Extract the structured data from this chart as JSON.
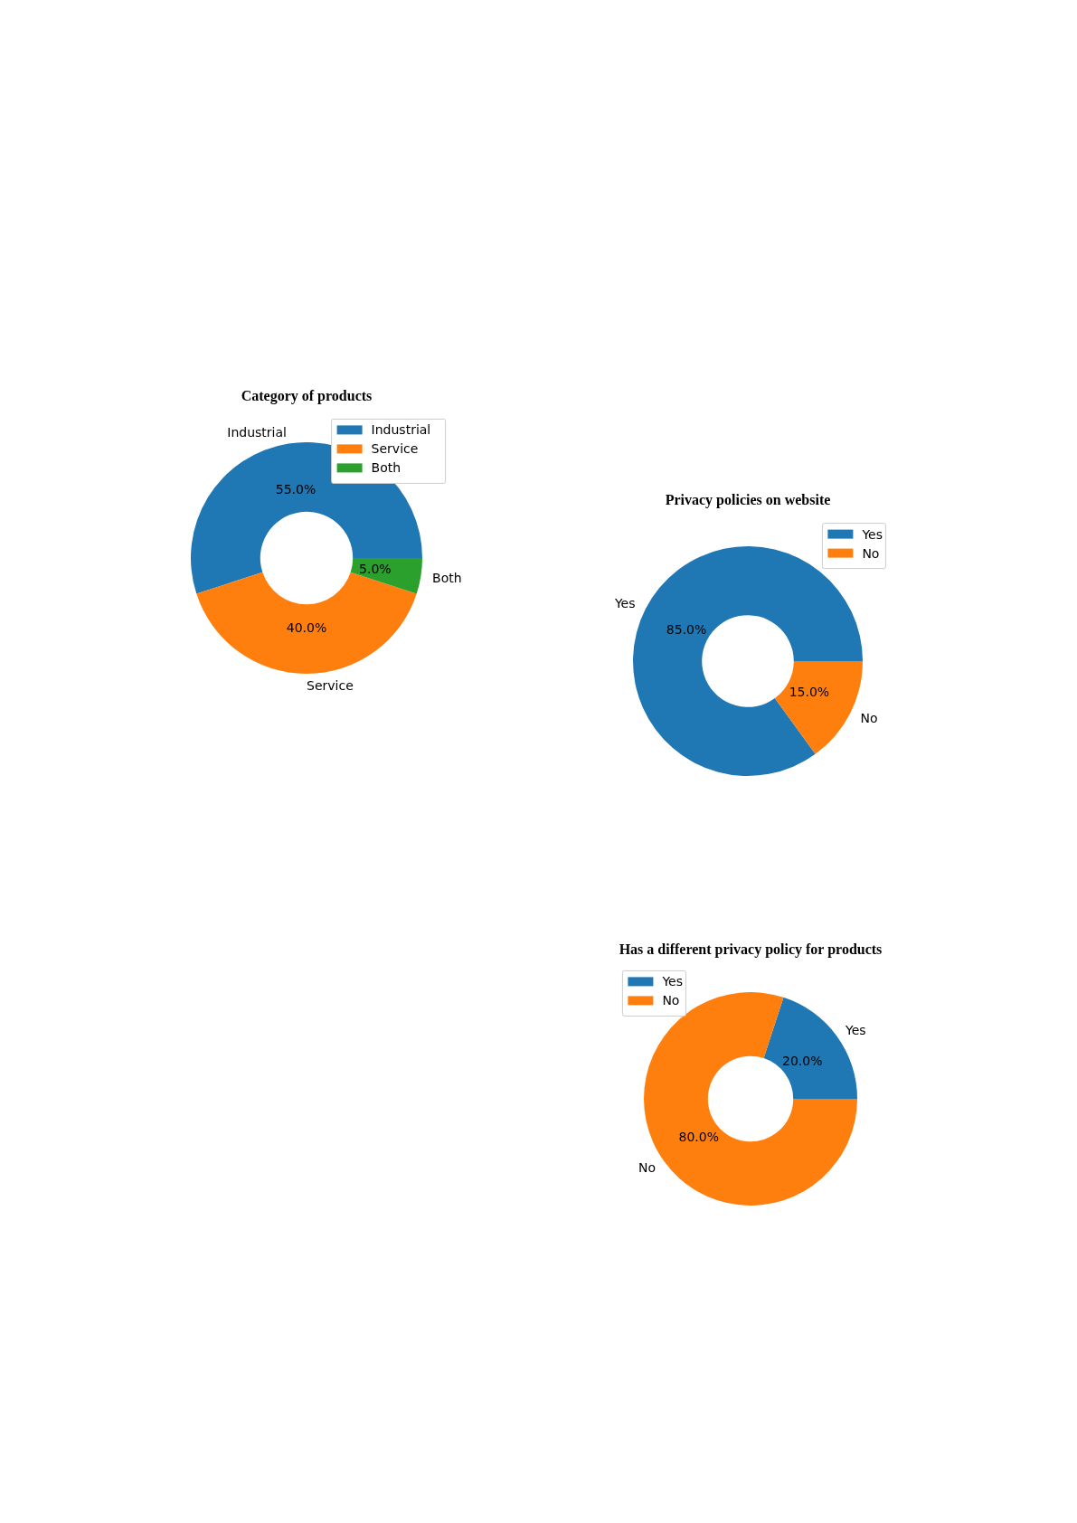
{
  "chart_data": [
    {
      "type": "donut",
      "title": "Category of products",
      "categories": [
        "Industrial",
        "Service",
        "Both"
      ],
      "values": [
        55,
        40,
        5
      ],
      "value_labels": [
        "55.0%",
        "40.0%",
        "5.0%"
      ],
      "colors": [
        "#1f77b4",
        "#ff7f0e",
        "#2ca02c"
      ],
      "legend": "top right"
    },
    {
      "type": "donut",
      "title": "Privacy policies on website",
      "categories": [
        "Yes",
        "No"
      ],
      "values": [
        85,
        15
      ],
      "value_labels": [
        "85.0%",
        "15.0%"
      ],
      "colors": [
        "#1f77b4",
        "#ff7f0e"
      ],
      "legend": "top right"
    },
    {
      "type": "donut",
      "title": "Has a different privacy policy for products",
      "categories": [
        "Yes",
        "No"
      ],
      "values": [
        20,
        80
      ],
      "value_labels": [
        "20.0%",
        "80.0%"
      ],
      "colors": [
        "#1f77b4",
        "#ff7f0e"
      ],
      "legend": "top left"
    }
  ]
}
